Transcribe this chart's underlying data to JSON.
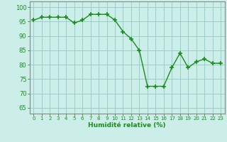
{
  "x": [
    0,
    1,
    2,
    3,
    4,
    5,
    6,
    7,
    8,
    9,
    10,
    11,
    12,
    13,
    14,
    15,
    16,
    17,
    18,
    19,
    20,
    21,
    22,
    23
  ],
  "y": [
    95.5,
    96.5,
    96.5,
    96.5,
    96.5,
    94.5,
    95.5,
    97.5,
    97.5,
    97.5,
    95.5,
    91.5,
    89,
    85,
    72.5,
    72.5,
    72.5,
    79,
    84,
    79,
    81,
    82,
    80.5,
    80.5
  ],
  "line_color": "#1a8c1a",
  "marker_color": "#1a8c1a",
  "bg_color": "#cceee8",
  "grid_color": "#99cccc",
  "xlabel": "Humidité relative (%)",
  "xlabel_color": "#1a8c1a",
  "ylabel_ticks": [
    65,
    70,
    75,
    80,
    85,
    90,
    95,
    100
  ],
  "xlim": [
    -0.5,
    23.5
  ],
  "ylim": [
    63,
    102
  ],
  "xtick_labels": [
    "0",
    "1",
    "2",
    "3",
    "4",
    "5",
    "6",
    "7",
    "8",
    "9",
    "10",
    "11",
    "12",
    "13",
    "14",
    "15",
    "16",
    "17",
    "18",
    "19",
    "20",
    "21",
    "22",
    "23"
  ],
  "tick_color": "#1a8c1a",
  "axis_color": "#888888"
}
